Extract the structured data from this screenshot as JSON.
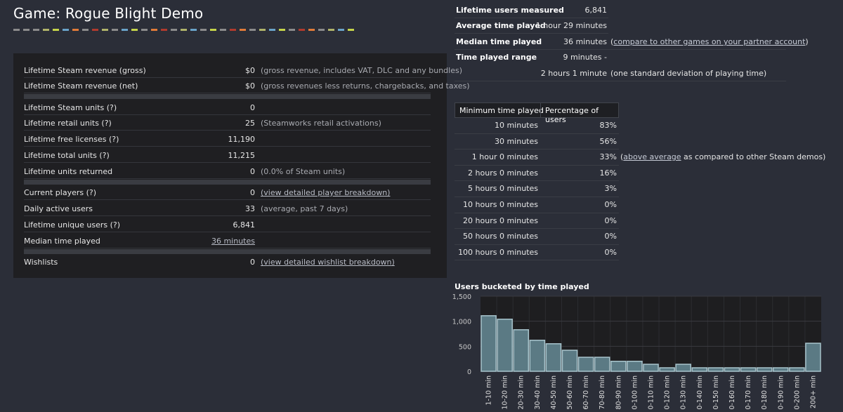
{
  "title": "Game: Rogue Blight Demo",
  "accent_colors": [
    "#8b8b8b",
    "#8b8b8b",
    "#8b8b8b",
    "#b0b36a",
    "#c5d34a",
    "#6aa3c8",
    "#e07b39",
    "#8b8b8b",
    "#b03a2e",
    "#b0b36a",
    "#8b8b8b",
    "#6aa3c8",
    "#c5d34a",
    "#8b8b8b",
    "#e07b39",
    "#b03a2e",
    "#8b8b8b",
    "#b0b36a",
    "#6aa3c8",
    "#8b8b8b",
    "#c5d34a",
    "#8b8b8b",
    "#b03a2e",
    "#e07b39",
    "#8b8b8b",
    "#b0b36a",
    "#6aa3c8",
    "#c5d34a",
    "#8b8b8b",
    "#b03a2e",
    "#e07b39",
    "#8b8b8b",
    "#b0b36a",
    "#6aa3c8",
    "#c5d34a"
  ],
  "stats": {
    "revenue_gross": {
      "label": "Lifetime Steam revenue (gross)",
      "value": "$0",
      "note": "(gross revenue, includes VAT, DLC and any bundles)"
    },
    "revenue_net": {
      "label": "Lifetime Steam revenue (net)",
      "value": "$0",
      "note": "(gross revenues less returns, chargebacks, and taxes)"
    },
    "steam_units": {
      "label": "Lifetime Steam units (?)",
      "value": "0"
    },
    "retail_units": {
      "label": "Lifetime retail units (?)",
      "value": "25",
      "note": "(Steamworks retail activations)"
    },
    "free_licenses": {
      "label": "Lifetime free licenses (?)",
      "value": "11,190"
    },
    "total_units": {
      "label": "Lifetime total units (?)",
      "value": "11,215"
    },
    "units_returned": {
      "label": "Lifetime units returned",
      "value": "0",
      "note": "(0.0% of Steam units)"
    },
    "current_players": {
      "label": "Current players (?)",
      "value": "0",
      "link": "(view detailed player breakdown)"
    },
    "daily_active": {
      "label": "Daily active users",
      "value": "33",
      "note": "(average, past 7 days)"
    },
    "unique_users": {
      "label": "Lifetime unique users (?)",
      "value": "6,841"
    },
    "median_time": {
      "label": "Median time played",
      "value": "36 minutes"
    },
    "wishlists": {
      "label": "Wishlists",
      "value": "0",
      "link": "(view detailed wishlist breakdown)"
    }
  },
  "summary": {
    "users_measured": {
      "label": "Lifetime users measured",
      "value": "6,841"
    },
    "avg_time": {
      "label": "Average time played",
      "value": "1 hour 29 minutes"
    },
    "median_time": {
      "label": "Median time played",
      "value": "36 minutes",
      "note_open": "(",
      "link": "compare to other games on your partner account",
      "note_close": ")"
    },
    "range": {
      "label": "Time played range",
      "value": "9 minutes -",
      "value2": "2 hours 1 minute",
      "note": "(one standard deviation of playing time)"
    }
  },
  "time_table": {
    "header_min": "Minimum time played",
    "header_pct": "Percentage of users",
    "rows": [
      {
        "time": "10 minutes",
        "pct": "83%"
      },
      {
        "time": "30 minutes",
        "pct": "56%"
      },
      {
        "time": "1 hour 0 minutes",
        "pct": "33%",
        "note_open": "(",
        "link": "above average",
        "note_rest": " as compared to other Steam demos)"
      },
      {
        "time": "2 hours 0 minutes",
        "pct": "16%"
      },
      {
        "time": "5 hours 0 minutes",
        "pct": "3%"
      },
      {
        "time": "10 hours 0 minutes",
        "pct": "0%"
      },
      {
        "time": "20 hours 0 minutes",
        "pct": "0%"
      },
      {
        "time": "50 hours 0 minutes",
        "pct": "0%"
      },
      {
        "time": "100 hours 0 minutes",
        "pct": "0%"
      }
    ]
  },
  "chart_data": {
    "type": "bar",
    "title": "Users bucketed by time played",
    "categories": [
      "1-10 min",
      "10-20 min",
      "20-30 min",
      "30-40 min",
      "40-50 min",
      "50-60 min",
      "60-70 min",
      "70-80 min",
      "80-90 min",
      "90-100 min",
      "100-110 min",
      "110-120 min",
      "120-130 min",
      "130-140 min",
      "140-150 min",
      "150-160 min",
      "160-170 min",
      "170-180 min",
      "180-190 min",
      "190-200 min",
      "200+ min"
    ],
    "values": [
      1110,
      1040,
      830,
      620,
      550,
      420,
      280,
      280,
      200,
      200,
      140,
      70,
      140,
      70,
      70,
      70,
      70,
      70,
      70,
      70,
      560
    ],
    "yticks": [
      "0",
      "500",
      "1,000",
      "1,500"
    ],
    "ylim": [
      0,
      1500
    ],
    "grid": true,
    "bar_color": "#5b7a84",
    "bar_edge": "#a8c4cc"
  }
}
